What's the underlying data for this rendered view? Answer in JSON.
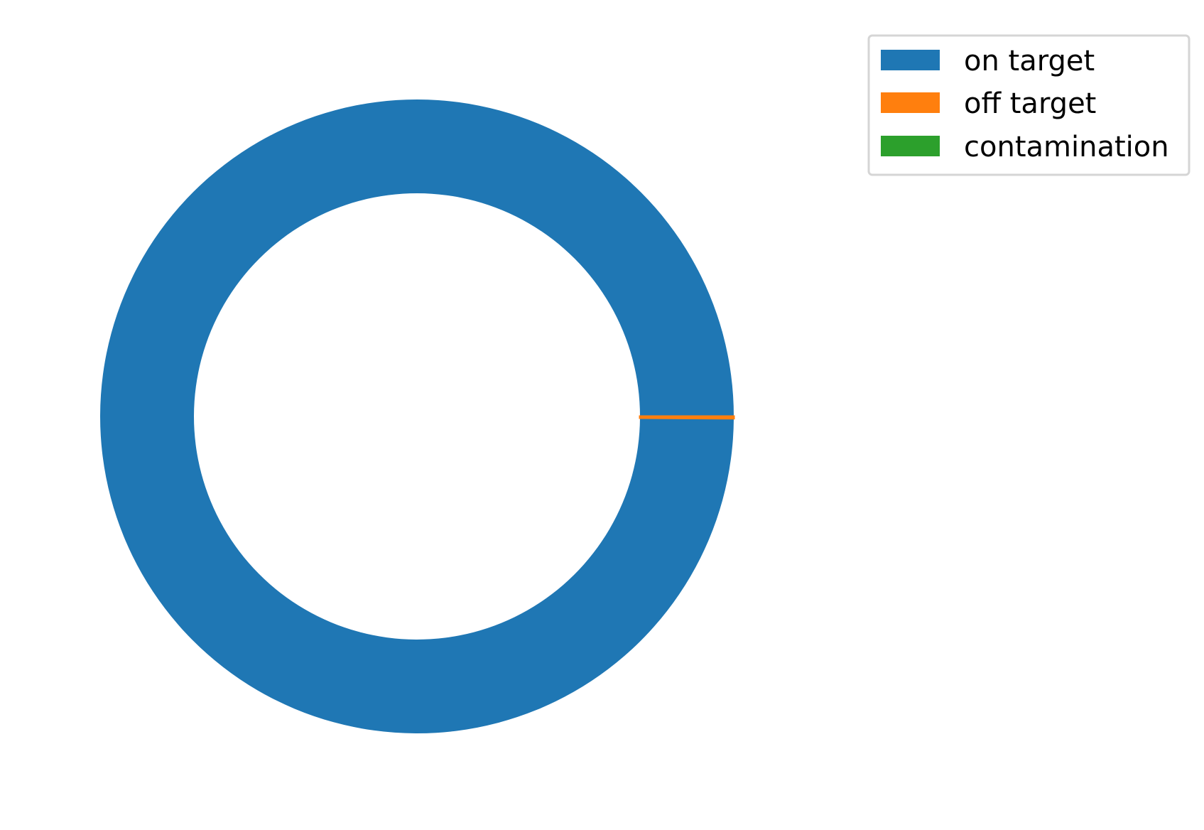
{
  "chart_data": {
    "type": "pie",
    "style": "donut",
    "title": "",
    "categories": [
      "on target",
      "off target",
      "contamination"
    ],
    "values": [
      99.9,
      0.1,
      0.0
    ],
    "colors": [
      "#1f77b4",
      "#ff7f0e",
      "#2ca02c"
    ],
    "start_angle_deg": 0,
    "direction": "counterclockwise",
    "legend": {
      "placement": "top-right",
      "entries": [
        "on target",
        "off target",
        "contamination"
      ]
    }
  }
}
